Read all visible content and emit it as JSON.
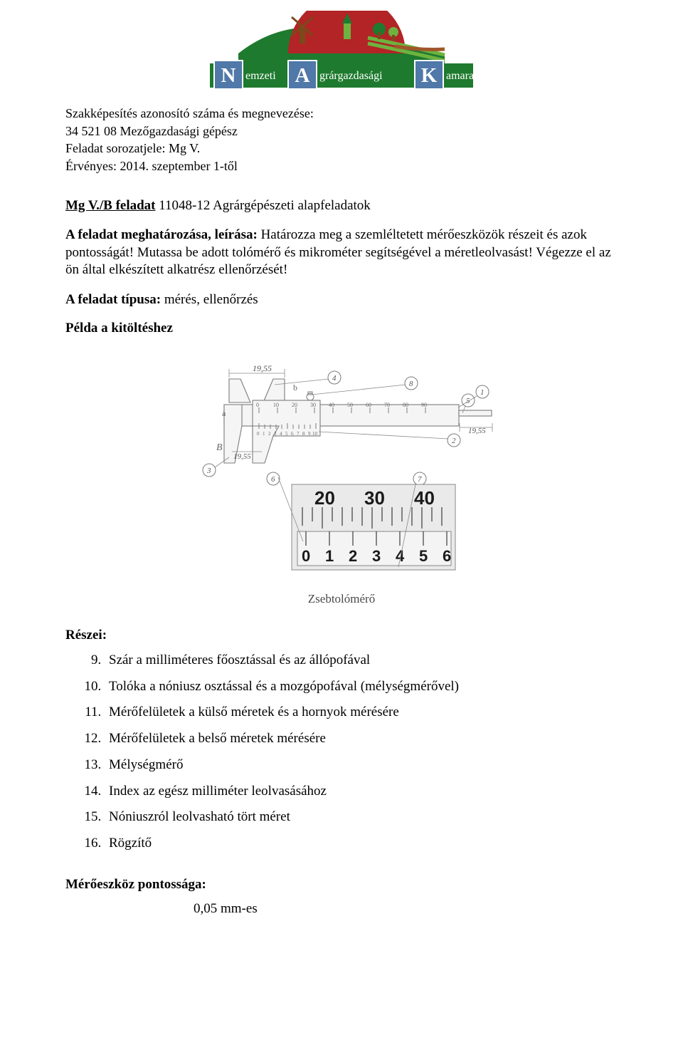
{
  "logo": {
    "text_nemzeti_initial": "N",
    "text_nemzeti": "emzeti",
    "text_agrar_initial": "A",
    "text_agrar": "grárgazdasági",
    "text_kamara_initial": "K",
    "text_kamara": "amara",
    "green_dark": "#1e7a2e",
    "green_light": "#6db33f",
    "red": "#b22426",
    "brown": "#7a4a1a",
    "blue": "#5078a8",
    "text_color": "#ffffff"
  },
  "header": {
    "line1": "Szakképesítés azonosító száma és megnevezése:",
    "line2": "34 521 08 Mezőgazdasági gépész",
    "line3": "Feladat sorozatjele: Mg V.",
    "line4": "Érvényes: 2014. szeptember 1-től"
  },
  "task": {
    "code_label": "Mg V./B feladat",
    "code_rest": "  11048-12 Agrárgépészeti alapfeladatok"
  },
  "description": {
    "lead": "A feladat meghatározása, leírása:",
    "body": " Határozza meg a szemléltetett mérőeszközök részeit és azok pontosságát! Mutassa be adott tolómérő és mikrométer segítségével a méretleolvasást! Végezze el az ön által elkészített alkatrész ellenőrzését!"
  },
  "type": {
    "label": "A feladat típusa:",
    "value": " mérés, ellenőrzés"
  },
  "example_heading": "Példa a kitöltéshez",
  "figure": {
    "caption": "Zsebtolómérő",
    "dim_top": "19,55",
    "dim_right": "19,55",
    "dim_left_bottom": "19,55",
    "label_a": "a",
    "label_b": "b",
    "label_B": "B",
    "main_scale": [
      "0",
      "10",
      "20",
      "30",
      "40",
      "50",
      "60",
      "70",
      "80",
      "90"
    ],
    "nonius_scale": [
      "0",
      "1",
      "2",
      "3",
      "4",
      "5",
      "6",
      "7",
      "8",
      "9",
      "10"
    ],
    "callouts": [
      "1",
      "2",
      "3",
      "4",
      "5",
      "6",
      "7",
      "8"
    ],
    "closeup_top": [
      "20",
      "30",
      "40"
    ],
    "closeup_bottom": [
      "0",
      "1",
      "2",
      "3",
      "4",
      "5",
      "6"
    ]
  },
  "parts": {
    "heading": "Részei:",
    "start": 9,
    "items": [
      "Szár a milliméteres főosztással és az állópofával",
      "Tolóka a nóniusz osztással és a mozgópofával (mélységmérővel)",
      "Mérőfelületek a külső méretek és a hornyok mérésére",
      "Mérőfelületek a belső méretek mérésére",
      "Mélységmérő",
      "Index az egész milliméter leolvasásához",
      "Nóniuszról leolvasható tört méret",
      "Rögzítő"
    ]
  },
  "precision": {
    "heading": "Mérőeszköz pontossága:",
    "value": "0,05 mm-es"
  }
}
